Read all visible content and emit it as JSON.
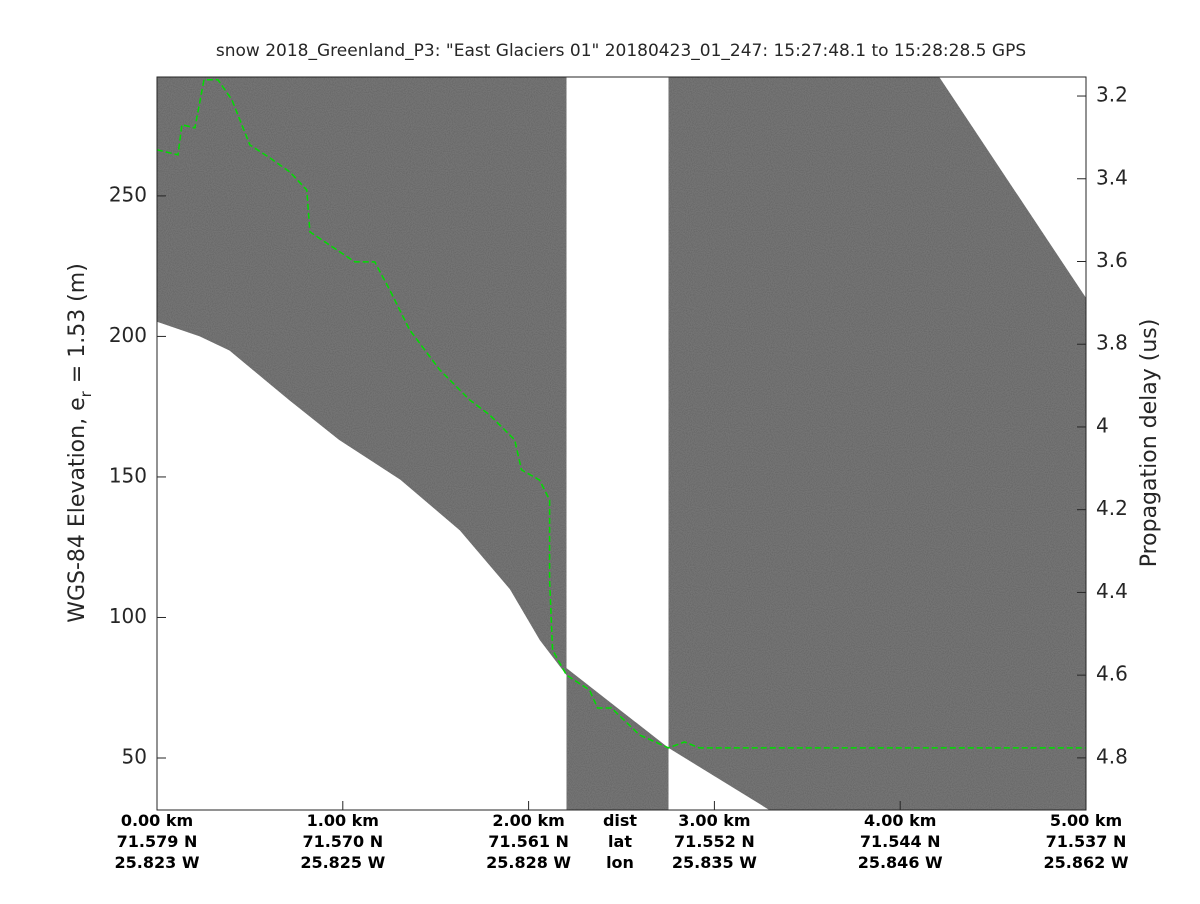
{
  "chart_data": {
    "type": "echogram",
    "title": "snow 2018_Greenland_P3: \"East Glaciers 01\"  20180423_01_247: 15:27:48.1 to 15:28:28.5 GPS",
    "ylabel": "WGS-84 Elevation, e",
    "ylabel_sub": "r",
    "ylabel_rest": "= 1.53 (m)",
    "y2label": "Propagation delay (us)",
    "xlim": [
      0,
      5.0
    ],
    "ylim": [
      31.5,
      292.3
    ],
    "y2lim": [
      4.926,
      3.154
    ],
    "yticks": [
      50,
      100,
      150,
      200,
      250
    ],
    "y2ticks": [
      3.2,
      3.4,
      3.6,
      3.8,
      4,
      4.2,
      4.4,
      4.6,
      4.8
    ],
    "xticks": [
      {
        "value": 0,
        "label": "0.00 km"
      },
      {
        "value": 1,
        "label": "1.00 km"
      },
      {
        "value": 2,
        "label": "2.00 km"
      },
      {
        "value": 3,
        "label": "3.00 km"
      },
      {
        "value": 4,
        "label": "4.00 km"
      },
      {
        "value": 5,
        "label": "5.00 km"
      }
    ],
    "x_lat_labels": [
      "71.579 N",
      "71.570 N",
      "71.561 N",
      "71.552 N",
      "71.544 N",
      "71.537 N"
    ],
    "x_lon_labels": [
      "25.823 W",
      "25.825 W",
      "25.828 W",
      "25.835 W",
      "25.846 W",
      "25.862 W"
    ],
    "x_row_labels": [
      "dist",
      "lat",
      "lon"
    ],
    "echogram_color": "#747474",
    "echogram_regions": [
      {
        "x": [
          0,
          2.204,
          2.204,
          2.06,
          1.9,
          1.63,
          1.31,
          0.98,
          0.71,
          0.39,
          0.23,
          0
        ],
        "values": [
          292.3,
          292.3,
          79.5,
          92,
          110,
          131,
          149,
          163.2,
          177.4,
          195,
          200,
          205.2
        ]
      },
      {
        "x": [
          2.204,
          2.753,
          2.753,
          2.204
        ],
        "values": [
          82,
          53.6,
          31.5,
          31.5
        ]
      },
      {
        "x": [
          2.753,
          4.21,
          5.0,
          5.0,
          3.296,
          2.753
        ],
        "values": [
          292.3,
          292.3,
          213.7,
          31.5,
          31.5,
          53.6
        ]
      }
    ],
    "series": [
      {
        "color": "#00dd00",
        "x": [
          0,
          0.113,
          0.134,
          0.204,
          0.253,
          0.328,
          0.403,
          0.5,
          0.608,
          0.715,
          0.806,
          0.823,
          0.984,
          1.065,
          1.172,
          1.253,
          1.36,
          1.522,
          1.683,
          1.79,
          1.925,
          1.962,
          2.059,
          2.113,
          2.113,
          2.129,
          2.204,
          2.328,
          2.371,
          2.446,
          2.597,
          2.753,
          2.839,
          2.919,
          5.0
        ],
        "values": [
          266.4,
          264.6,
          275.3,
          274.2,
          291.3,
          291.3,
          284.2,
          268.1,
          263.5,
          258.5,
          252.1,
          237.2,
          230.1,
          226.5,
          226.5,
          216.5,
          202.3,
          188.1,
          177.4,
          172.1,
          163.2,
          152.5,
          148.9,
          141.8,
          113.3,
          88.4,
          79.5,
          74.2,
          67.8,
          67.8,
          58.2,
          53.6,
          55.7,
          53.6,
          53.6
        ]
      }
    ]
  }
}
